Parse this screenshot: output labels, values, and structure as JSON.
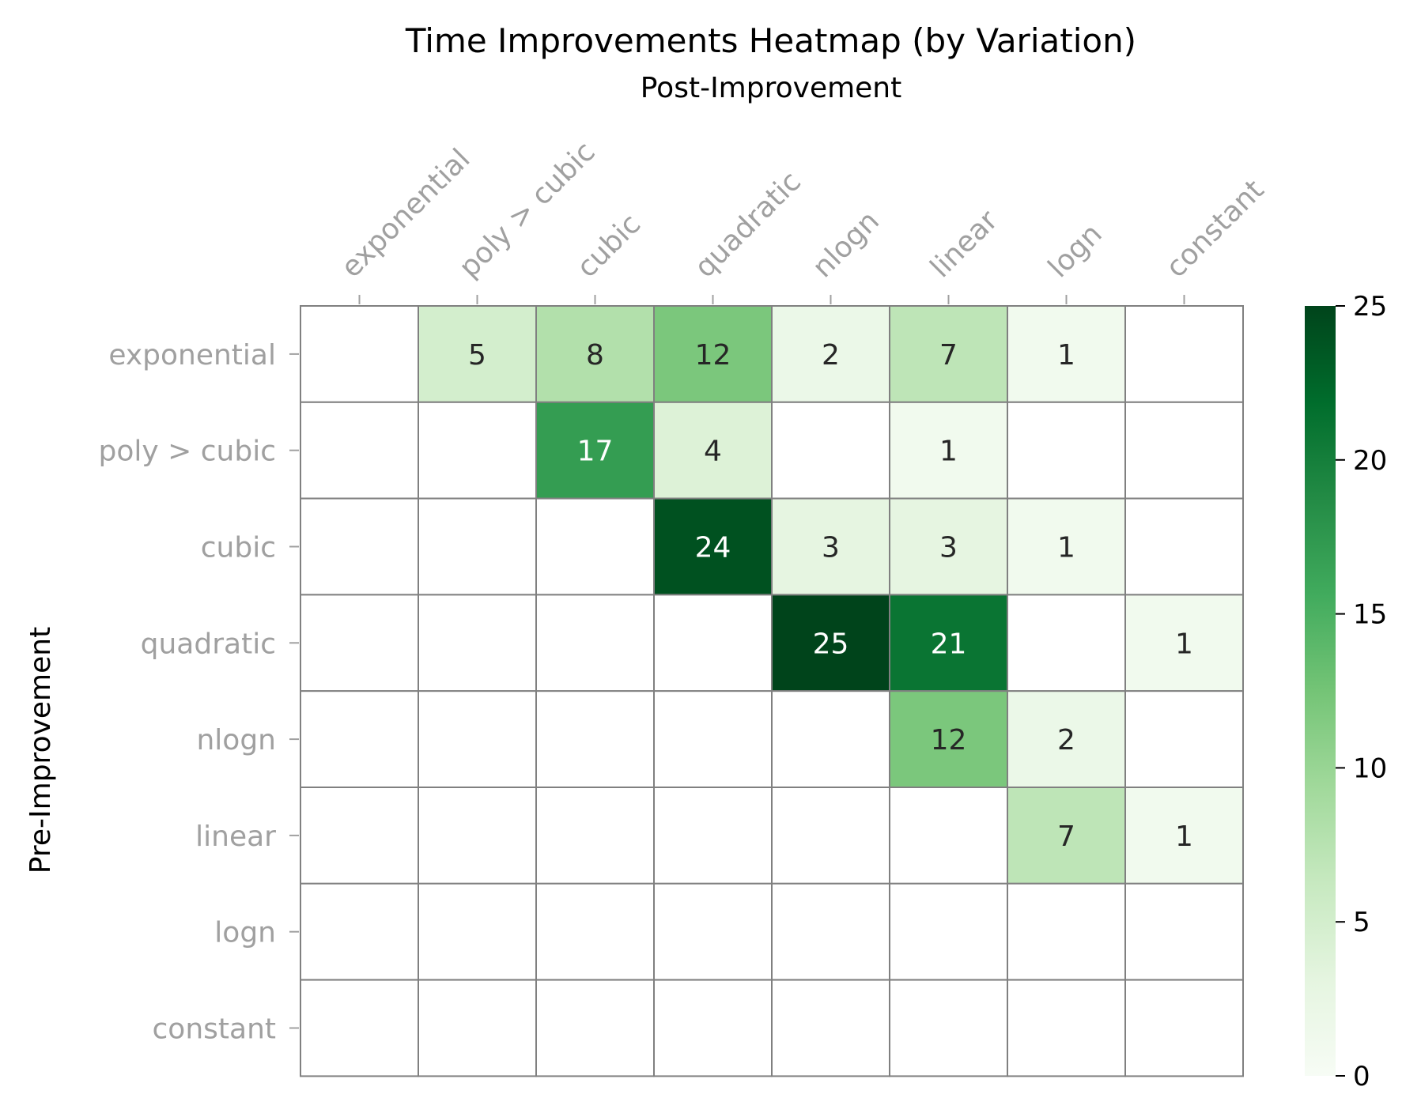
{
  "chart_data": {
    "type": "heatmap",
    "title": "Time Improvements Heatmap (by Variation)",
    "xlabel": "Post-Improvement",
    "ylabel": "Pre-Improvement",
    "x_categories": [
      "exponential",
      "poly > cubic",
      "cubic",
      "quadratic",
      "nlogn",
      "linear",
      "logn",
      "constant"
    ],
    "y_categories": [
      "exponential",
      "poly > cubic",
      "cubic",
      "quadratic",
      "nlogn",
      "linear",
      "logn",
      "constant"
    ],
    "values": [
      [
        null,
        5,
        8,
        12,
        2,
        7,
        1,
        null
      ],
      [
        null,
        null,
        17,
        4,
        null,
        1,
        null,
        null
      ],
      [
        null,
        null,
        null,
        24,
        3,
        3,
        1,
        null
      ],
      [
        null,
        null,
        null,
        null,
        25,
        21,
        null,
        1
      ],
      [
        null,
        null,
        null,
        null,
        null,
        12,
        2,
        null
      ],
      [
        null,
        null,
        null,
        null,
        null,
        null,
        7,
        1
      ],
      [
        null,
        null,
        null,
        null,
        null,
        null,
        null,
        null
      ],
      [
        null,
        null,
        null,
        null,
        null,
        null,
        null,
        null
      ]
    ],
    "colorbar": {
      "min": 0,
      "max": 25,
      "ticks": [
        "0",
        "5",
        "10",
        "15",
        "20",
        "25"
      ],
      "colormap": "Greens",
      "colors": [
        "#f7fcf5",
        "#e5f5e0",
        "#c7e9c0",
        "#a1d99b",
        "#74c476",
        "#41ab5d",
        "#238b45",
        "#006d2c",
        "#00441b"
      ]
    },
    "grid_line_color": "#808080",
    "tick_label_color": "#a0a0a0"
  }
}
